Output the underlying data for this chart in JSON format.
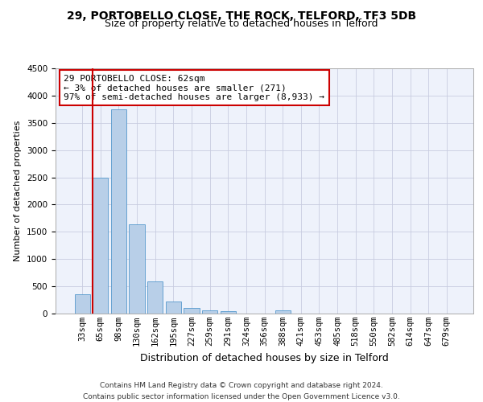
{
  "title1": "29, PORTOBELLO CLOSE, THE ROCK, TELFORD, TF3 5DB",
  "title2": "Size of property relative to detached houses in Telford",
  "xlabel": "Distribution of detached houses by size in Telford",
  "ylabel": "Number of detached properties",
  "bar_labels": [
    "33sqm",
    "65sqm",
    "98sqm",
    "130sqm",
    "162sqm",
    "195sqm",
    "227sqm",
    "259sqm",
    "291sqm",
    "324sqm",
    "356sqm",
    "388sqm",
    "421sqm",
    "453sqm",
    "485sqm",
    "518sqm",
    "550sqm",
    "582sqm",
    "614sqm",
    "647sqm",
    "679sqm"
  ],
  "bar_values": [
    360,
    2500,
    3750,
    1640,
    590,
    225,
    105,
    60,
    40,
    0,
    0,
    55,
    0,
    0,
    0,
    0,
    0,
    0,
    0,
    0,
    0
  ],
  "annotation_text": "29 PORTOBELLO CLOSE: 62sqm\n← 3% of detached houses are smaller (271)\n97% of semi-detached houses are larger (8,933) →",
  "annotation_box_color": "#cc0000",
  "bar_color": "#b8cfe8",
  "bar_edge_color": "#5599cc",
  "highlight_line_color": "#cc0000",
  "ylim": [
    0,
    4500
  ],
  "yticks": [
    0,
    500,
    1000,
    1500,
    2000,
    2500,
    3000,
    3500,
    4000,
    4500
  ],
  "footer_text": "Contains HM Land Registry data © Crown copyright and database right 2024.\nContains public sector information licensed under the Open Government Licence v3.0.",
  "bg_color": "#eef2fb",
  "grid_color": "#c8cce0",
  "title1_fontsize": 10,
  "title2_fontsize": 9,
  "xlabel_fontsize": 9,
  "ylabel_fontsize": 8,
  "tick_fontsize": 7.5,
  "annotation_fontsize": 8,
  "footer_fontsize": 6.5
}
